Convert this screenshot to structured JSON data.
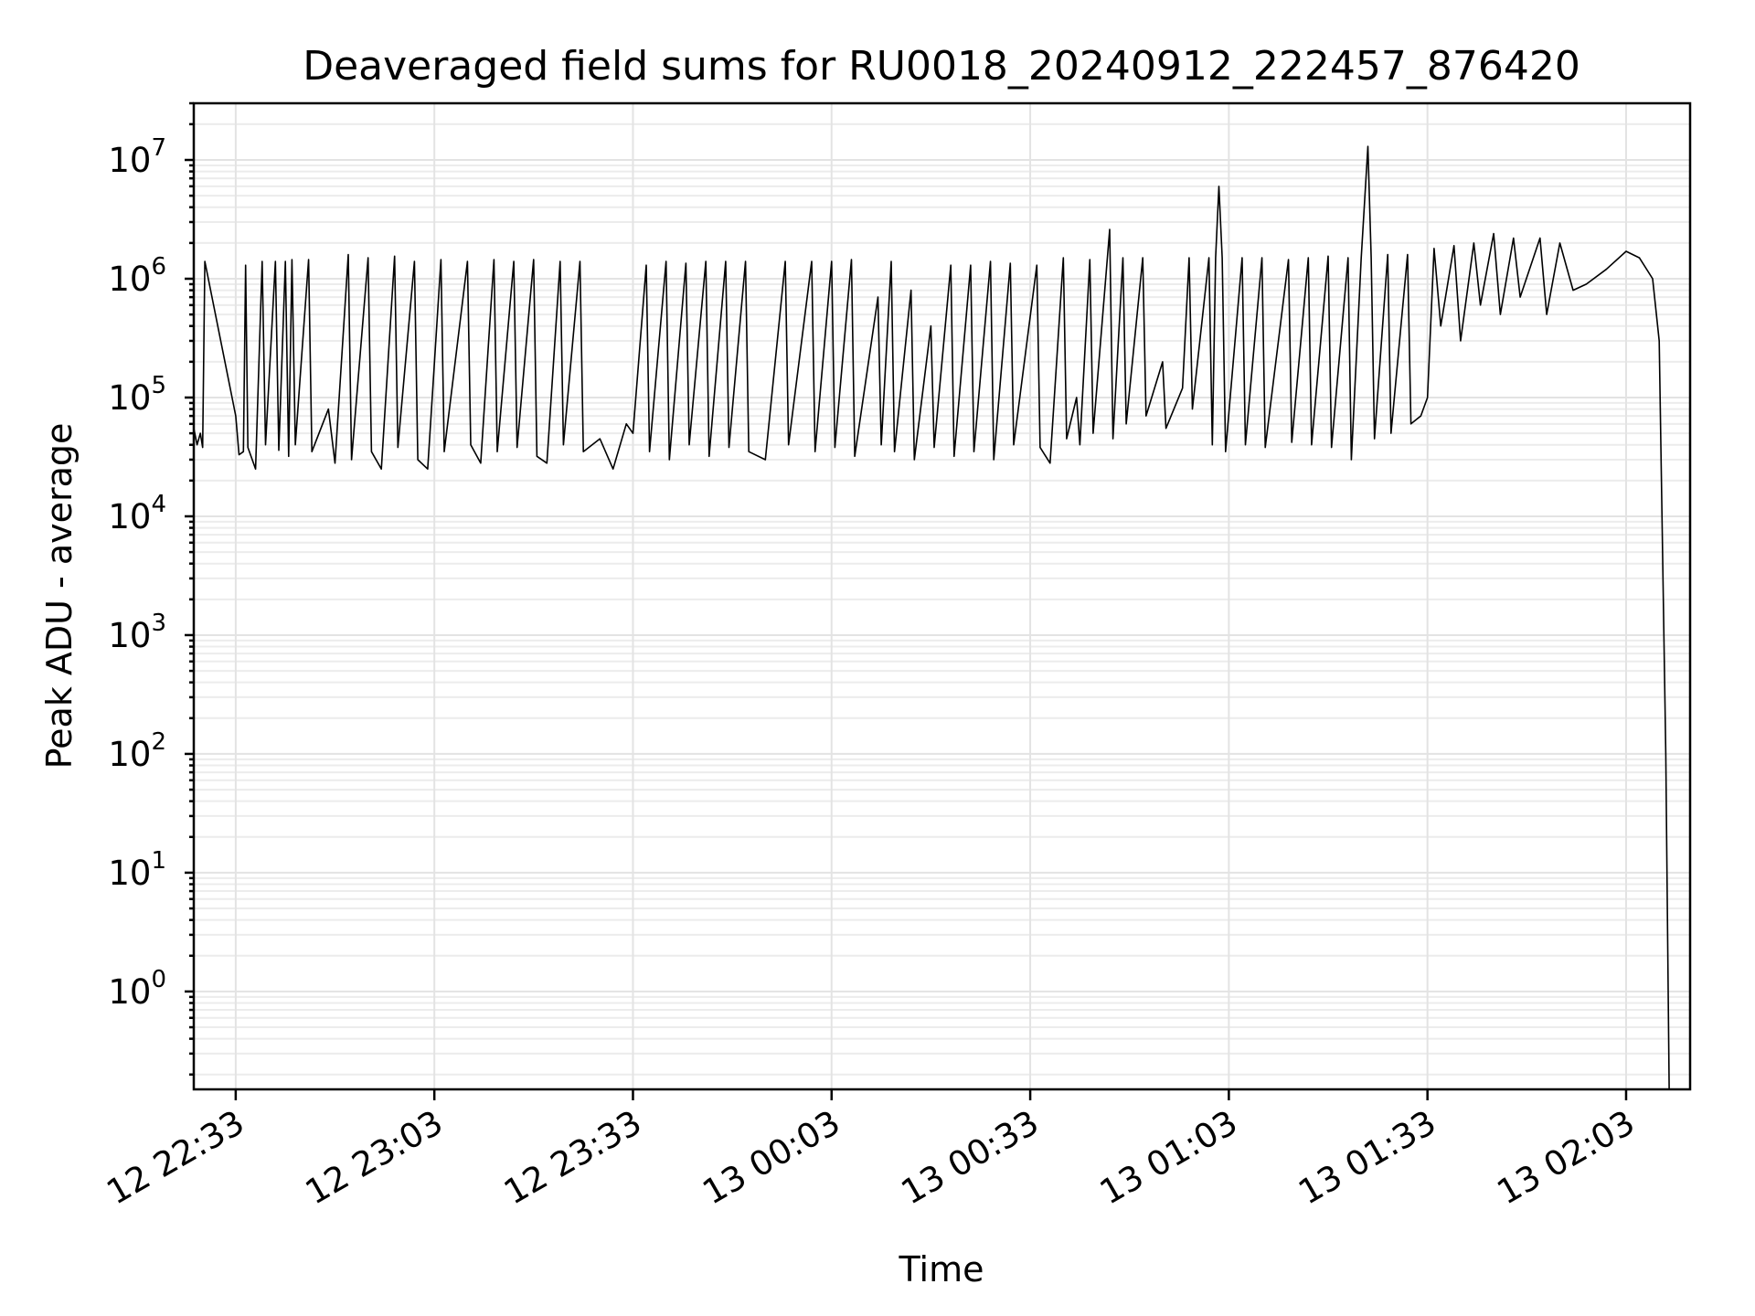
{
  "chart_data": {
    "type": "line",
    "title": "Deaveraged field sums for RU0018_20240912_222457_876420",
    "xlabel": "Time",
    "ylabel": "Peak ADU - average",
    "yscale": "log",
    "ylim": [
      0.15,
      30000000
    ],
    "xlim": [
      "12 22:26:40",
      "13 02:12:40"
    ],
    "x_ticks": [
      "12 22:33",
      "12 23:03",
      "12 23:33",
      "13 00:03",
      "13 00:33",
      "13 01:03",
      "13 01:33",
      "13 02:03"
    ],
    "y_ticks": [
      {
        "base": "10",
        "exp": "0"
      },
      {
        "base": "10",
        "exp": "1"
      },
      {
        "base": "10",
        "exp": "2"
      },
      {
        "base": "10",
        "exp": "3"
      },
      {
        "base": "10",
        "exp": "4"
      },
      {
        "base": "10",
        "exp": "5"
      },
      {
        "base": "10",
        "exp": "6"
      },
      {
        "base": "10",
        "exp": "7"
      }
    ],
    "grid": true,
    "line_color": "#000000",
    "series": [
      {
        "points": [
          [
            "12 22:26:40",
            55000
          ],
          [
            "12 22:27:10",
            40000
          ],
          [
            "12 22:27:40",
            50000
          ],
          [
            "12 22:28:00",
            38000
          ],
          [
            "12 22:28:20",
            1400000
          ],
          [
            "12 22:33:00",
            70000
          ],
          [
            "12 22:33:30",
            33000
          ],
          [
            "12 22:34:10",
            35000
          ],
          [
            "12 22:34:30",
            1300000
          ],
          [
            "12 22:34:50",
            38000
          ],
          [
            "12 22:36:00",
            25000
          ],
          [
            "12 22:37:00",
            1400000
          ],
          [
            "12 22:37:30",
            40000
          ],
          [
            "12 22:39:00",
            1400000
          ],
          [
            "12 22:39:30",
            36000
          ],
          [
            "12 22:40:30",
            1400000
          ],
          [
            "12 22:41:00",
            32000
          ],
          [
            "12 22:41:30",
            1450000
          ],
          [
            "12 22:42:00",
            40000
          ],
          [
            "12 22:44:00",
            1450000
          ],
          [
            "12 22:44:30",
            35000
          ],
          [
            "12 22:47:00",
            80000
          ],
          [
            "12 22:48:00",
            28000
          ],
          [
            "12 22:50:00",
            1600000
          ],
          [
            "12 22:50:30",
            30000
          ],
          [
            "12 22:53:00",
            1500000
          ],
          [
            "12 22:53:30",
            35000
          ],
          [
            "12 22:55:00",
            25000
          ],
          [
            "12 22:57:00",
            1550000
          ],
          [
            "12 22:57:30",
            38000
          ],
          [
            "12 23:00:00",
            1400000
          ],
          [
            "12 23:00:30",
            30000
          ],
          [
            "12 23:02:00",
            25000
          ],
          [
            "12 23:04:00",
            1450000
          ],
          [
            "12 23:04:30",
            35000
          ],
          [
            "12 23:08:00",
            1400000
          ],
          [
            "12 23:08:30",
            40000
          ],
          [
            "12 23:10:00",
            28000
          ],
          [
            "12 23:12:00",
            1450000
          ],
          [
            "12 23:12:30",
            35000
          ],
          [
            "12 23:15:00",
            1400000
          ],
          [
            "12 23:15:30",
            38000
          ],
          [
            "12 23:18:00",
            1450000
          ],
          [
            "12 23:18:30",
            32000
          ],
          [
            "12 23:20:00",
            28000
          ],
          [
            "12 23:22:00",
            1400000
          ],
          [
            "12 23:22:30",
            40000
          ],
          [
            "12 23:25:00",
            1400000
          ],
          [
            "12 23:25:30",
            35000
          ],
          [
            "12 23:28:00",
            45000
          ],
          [
            "12 23:30:00",
            25000
          ],
          [
            "12 23:32:00",
            60000
          ],
          [
            "12 23:33:00",
            50000
          ],
          [
            "12 23:35:00",
            1300000
          ],
          [
            "12 23:35:30",
            35000
          ],
          [
            "12 23:38:00",
            1400000
          ],
          [
            "12 23:38:30",
            30000
          ],
          [
            "12 23:41:00",
            1350000
          ],
          [
            "12 23:41:30",
            40000
          ],
          [
            "12 23:44:00",
            1400000
          ],
          [
            "12 23:44:30",
            32000
          ],
          [
            "12 23:47:00",
            1400000
          ],
          [
            "12 23:47:30",
            38000
          ],
          [
            "12 23:50:00",
            1400000
          ],
          [
            "12 23:50:30",
            35000
          ],
          [
            "12 23:53:00",
            30000
          ],
          [
            "12 23:56:00",
            1400000
          ],
          [
            "12 23:56:30",
            40000
          ],
          [
            "13 00:00:00",
            1400000
          ],
          [
            "13 00:00:30",
            35000
          ],
          [
            "13 00:03:00",
            1400000
          ],
          [
            "13 00:03:30",
            38000
          ],
          [
            "13 00:06:00",
            1450000
          ],
          [
            "13 00:06:30",
            32000
          ],
          [
            "13 00:10:00",
            700000
          ],
          [
            "13 00:10:30",
            40000
          ],
          [
            "13 00:12:00",
            1400000
          ],
          [
            "13 00:12:30",
            35000
          ],
          [
            "13 00:15:00",
            800000
          ],
          [
            "13 00:15:30",
            30000
          ],
          [
            "13 00:18:00",
            400000
          ],
          [
            "13 00:18:30",
            38000
          ],
          [
            "13 00:21:00",
            1300000
          ],
          [
            "13 00:21:30",
            32000
          ],
          [
            "13 00:24:00",
            1300000
          ],
          [
            "13 00:24:30",
            35000
          ],
          [
            "13 00:27:00",
            1400000
          ],
          [
            "13 00:27:30",
            30000
          ],
          [
            "13 00:30:00",
            1350000
          ],
          [
            "13 00:30:30",
            40000
          ],
          [
            "13 00:34:00",
            1300000
          ],
          [
            "13 00:34:30",
            38000
          ],
          [
            "13 00:36:00",
            28000
          ],
          [
            "13 00:38:00",
            1500000
          ],
          [
            "13 00:38:30",
            45000
          ],
          [
            "13 00:40:00",
            100000
          ],
          [
            "13 00:40:30",
            40000
          ],
          [
            "13 00:42:00",
            1450000
          ],
          [
            "13 00:42:30",
            50000
          ],
          [
            "13 00:45:00",
            2600000
          ],
          [
            "13 00:45:30",
            45000
          ],
          [
            "13 00:47:00",
            1500000
          ],
          [
            "13 00:47:30",
            60000
          ],
          [
            "13 00:50:00",
            1500000
          ],
          [
            "13 00:50:30",
            70000
          ],
          [
            "13 00:53:00",
            200000
          ],
          [
            "13 00:53:30",
            55000
          ],
          [
            "13 00:56:00",
            120000
          ],
          [
            "13 00:57:00",
            1500000
          ],
          [
            "13 00:57:30",
            80000
          ],
          [
            "13 01:00:00",
            1500000
          ],
          [
            "13 01:00:30",
            40000
          ],
          [
            "13 01:01:00",
            1500000
          ],
          [
            "13 01:01:30",
            6000000
          ],
          [
            "13 01:02:00",
            1500000
          ],
          [
            "13 01:02:30",
            35000
          ],
          [
            "13 01:05:00",
            1500000
          ],
          [
            "13 01:05:30",
            40000
          ],
          [
            "13 01:08:00",
            1500000
          ],
          [
            "13 01:08:30",
            38000
          ],
          [
            "13 01:12:00",
            1450000
          ],
          [
            "13 01:12:30",
            42000
          ],
          [
            "13 01:15:00",
            1500000
          ],
          [
            "13 01:15:30",
            40000
          ],
          [
            "13 01:18:00",
            1550000
          ],
          [
            "13 01:18:30",
            38000
          ],
          [
            "13 01:21:00",
            1500000
          ],
          [
            "13 01:21:30",
            30000
          ],
          [
            "13 01:23:00",
            1500000
          ],
          [
            "13 01:24:00",
            13000000
          ],
          [
            "13 01:24:30",
            1500000
          ],
          [
            "13 01:25:00",
            45000
          ],
          [
            "13 01:27:00",
            1600000
          ],
          [
            "13 01:27:30",
            50000
          ],
          [
            "13 01:30:00",
            1600000
          ],
          [
            "13 01:30:30",
            60000
          ],
          [
            "13 01:32:00",
            70000
          ],
          [
            "13 01:33:00",
            100000
          ],
          [
            "13 01:34:00",
            1800000
          ],
          [
            "13 01:35:00",
            400000
          ],
          [
            "13 01:37:00",
            1900000
          ],
          [
            "13 01:38:00",
            300000
          ],
          [
            "13 01:40:00",
            2000000
          ],
          [
            "13 01:41:00",
            600000
          ],
          [
            "13 01:43:00",
            2400000
          ],
          [
            "13 01:44:00",
            500000
          ],
          [
            "13 01:46:00",
            2200000
          ],
          [
            "13 01:47:00",
            700000
          ],
          [
            "13 01:50:00",
            2200000
          ],
          [
            "13 01:51:00",
            500000
          ],
          [
            "13 01:53:00",
            2000000
          ],
          [
            "13 01:55:00",
            800000
          ],
          [
            "13 01:57:00",
            900000
          ],
          [
            "13 02:00:00",
            1200000
          ],
          [
            "13 02:03:00",
            1700000
          ],
          [
            "13 02:05:00",
            1500000
          ],
          [
            "13 02:07:00",
            1000000
          ],
          [
            "13 02:08:00",
            300000
          ],
          [
            "13 02:09:00",
            100
          ],
          [
            "13 02:09:30",
            0.15
          ]
        ]
      }
    ]
  }
}
